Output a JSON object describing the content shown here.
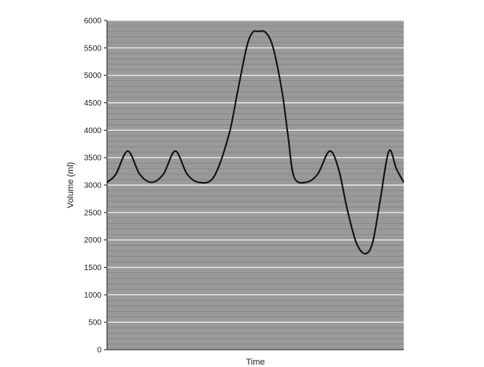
{
  "chart_data": {
    "type": "line",
    "xlabel": "Time",
    "ylabel": "Volume (ml)",
    "ylim": [
      0,
      6000
    ],
    "yticks": [
      0,
      500,
      1000,
      1500,
      2000,
      2500,
      3000,
      3500,
      4000,
      4500,
      5000,
      5500,
      6000
    ],
    "minor_grid_step": 100,
    "grid": true,
    "x_range": [
      0,
      100
    ],
    "series": [
      {
        "x": [
          0,
          3,
          7,
          11,
          15,
          19,
          23,
          27,
          31,
          36,
          41,
          44,
          47,
          49,
          51,
          53.5,
          56,
          59,
          61,
          63,
          67,
          71,
          75,
          78,
          81,
          84,
          87,
          89.5,
          92,
          95,
          97.5,
          100
        ],
        "y": [
          3050,
          3200,
          3620,
          3200,
          3050,
          3200,
          3620,
          3200,
          3050,
          3150,
          3900,
          4700,
          5500,
          5780,
          5800,
          5780,
          5500,
          4700,
          3900,
          3150,
          3050,
          3200,
          3620,
          3300,
          2550,
          1950,
          1750,
          1950,
          2700,
          3620,
          3300,
          3050
        ]
      }
    ],
    "colors": {
      "background": "#9a9a9a",
      "major_grid": "#e8e8e8",
      "minor_grid": "#7f7f7f",
      "line": "#111111"
    }
  }
}
